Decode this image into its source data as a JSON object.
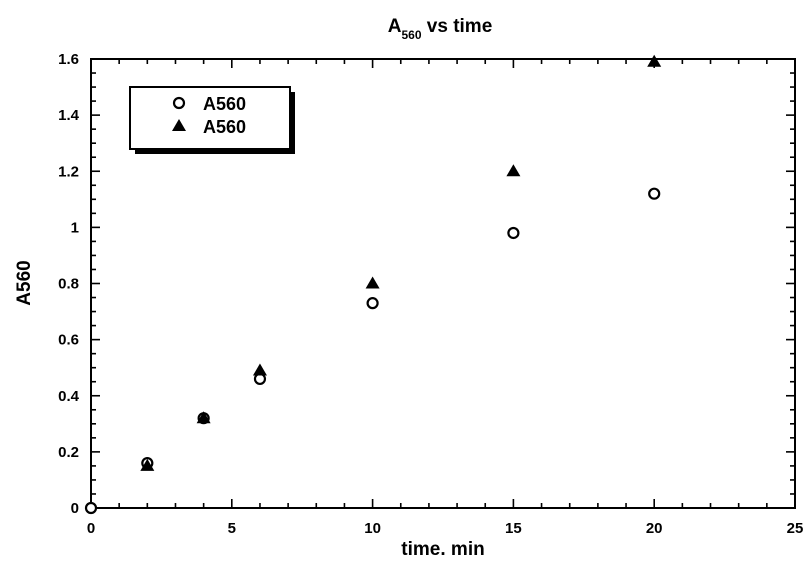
{
  "chart_data": {
    "type": "scatter",
    "title": {
      "main": "A",
      "subscript": "560",
      "rest": " vs time"
    },
    "xlabel": "time. min",
    "ylabel": "A560",
    "xlim": [
      0,
      25
    ],
    "ylim": [
      0,
      1.6
    ],
    "x_ticks": [
      0,
      5,
      10,
      15,
      20,
      25
    ],
    "x_tick_labels": [
      "0",
      "5",
      "10",
      "15",
      "20",
      "25"
    ],
    "y_ticks": [
      0,
      0.2,
      0.4,
      0.6,
      0.8,
      1,
      1.2,
      1.4,
      1.6
    ],
    "y_tick_labels": [
      "0",
      "0.2",
      "0.4",
      "0.6",
      "0.8",
      "1",
      "1.2",
      "1.4",
      "1.6"
    ],
    "grid": false,
    "legend_position": "top-left",
    "series": [
      {
        "name": "A560",
        "marker": "circle-open",
        "x": [
          0,
          2,
          4,
          6,
          10,
          15,
          20
        ],
        "y": [
          0,
          0.16,
          0.32,
          0.46,
          0.73,
          0.98,
          1.12
        ]
      },
      {
        "name": "A560",
        "marker": "triangle-filled",
        "x": [
          2,
          4,
          6,
          10,
          15,
          20
        ],
        "y": [
          0.15,
          0.32,
          0.49,
          0.8,
          1.2,
          1.59
        ]
      }
    ]
  }
}
